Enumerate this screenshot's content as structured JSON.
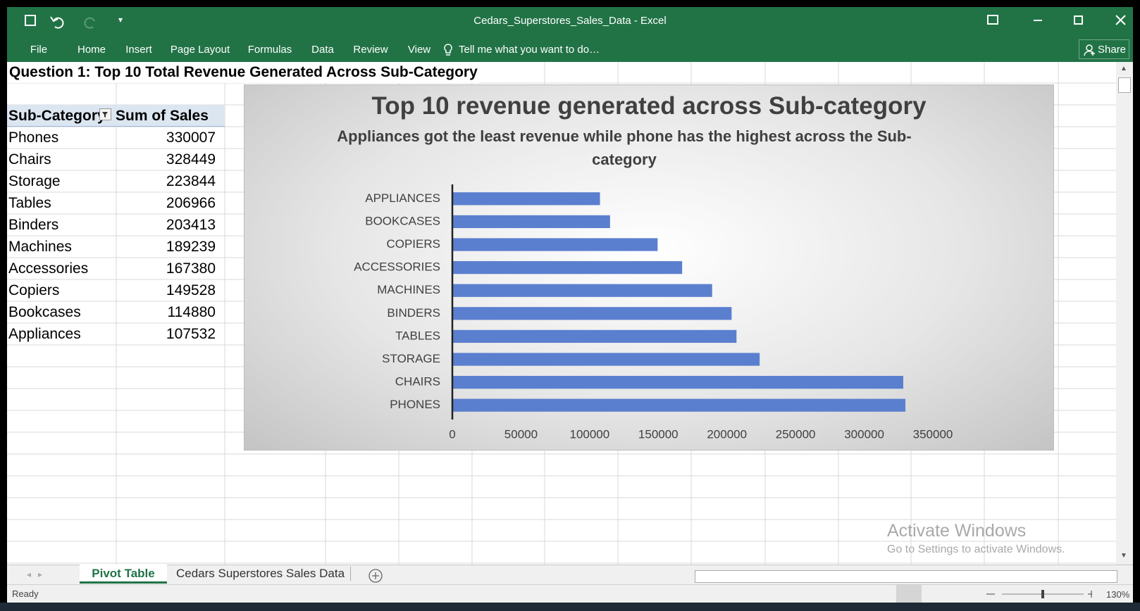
{
  "window": {
    "title": "Cedars_Superstores_Sales_Data - Excel"
  },
  "ribbon": {
    "tabs": [
      "File",
      "Home",
      "Insert",
      "Page Layout",
      "Formulas",
      "Data",
      "Review",
      "View"
    ],
    "tell_me": "Tell me what you want to do…",
    "share": "Share"
  },
  "sheet": {
    "heading": "Question 1: Top 10 Total Revenue Generated Across Sub-Category",
    "pivot": {
      "headers": [
        "Sub-Category",
        "Sum of Sales"
      ],
      "rows": [
        [
          "Phones",
          330007
        ],
        [
          "Chairs",
          328449
        ],
        [
          "Storage",
          223844
        ],
        [
          "Tables",
          206966
        ],
        [
          "Binders",
          203413
        ],
        [
          "Machines",
          189239
        ],
        [
          "Accessories",
          167380
        ],
        [
          "Copiers",
          149528
        ],
        [
          "Bookcases",
          114880
        ],
        [
          "Appliances",
          107532
        ]
      ]
    }
  },
  "chart_data": {
    "type": "bar",
    "orientation": "horizontal",
    "title": "Top 10 revenue generated across Sub-category",
    "subtitle": "Appliances got the least revenue while phone has the highest across the Sub-category",
    "categories": [
      "APPLIANCES",
      "BOOKCASES",
      "COPIERS",
      "ACCESSORIES",
      "MACHINES",
      "BINDERS",
      "TABLES",
      "STORAGE",
      "CHAIRS",
      "PHONES"
    ],
    "values": [
      107532,
      114880,
      149528,
      167380,
      189239,
      203413,
      206966,
      223844,
      328449,
      330007
    ],
    "color": "#5b7fcf",
    "xlim": [
      0,
      350000
    ],
    "xticks": [
      0,
      50000,
      100000,
      150000,
      200000,
      250000,
      300000,
      350000
    ],
    "grid": false
  },
  "sheet_tabs": [
    "Pivot Table",
    "Cedars Superstores Sales Data"
  ],
  "status": {
    "text": "Ready",
    "zoom": "130%"
  },
  "watermark": {
    "title": "Activate Windows",
    "subtitle": "Go to Settings to activate Windows."
  }
}
